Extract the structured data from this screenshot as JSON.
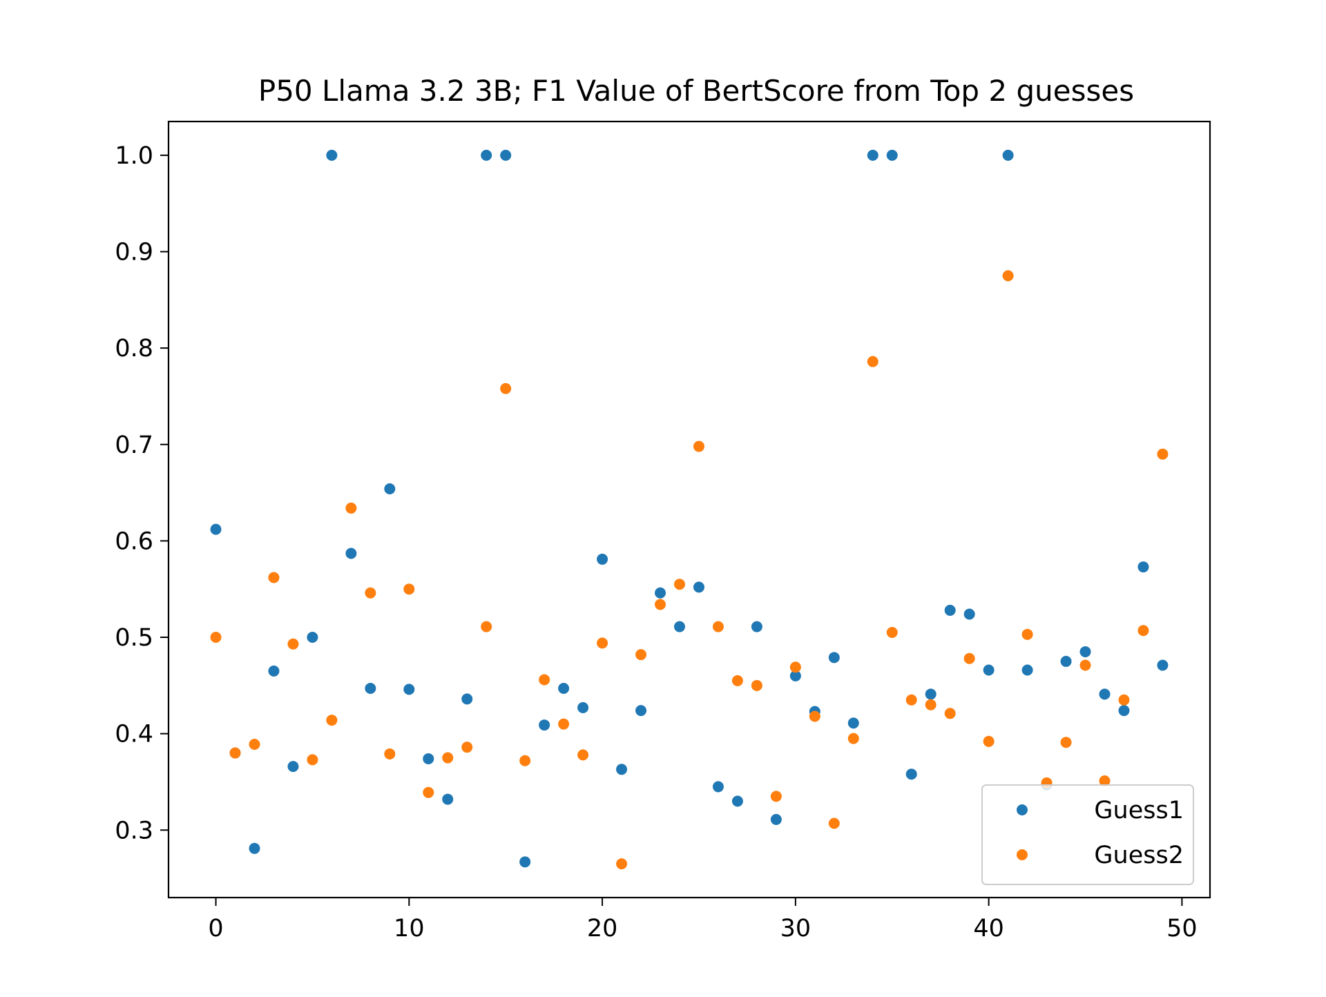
{
  "chart_data": {
    "type": "scatter",
    "title": "P50 Llama 3.2 3B; F1 Value of BertScore from Top 2 guesses",
    "xlabel": "",
    "ylabel": "",
    "xlim": [
      -2.45,
      51.45
    ],
    "ylim": [
      0.23,
      1.035
    ],
    "xticks": [
      0,
      10,
      20,
      30,
      40,
      50
    ],
    "yticks": [
      0.3,
      0.4,
      0.5,
      0.6,
      0.7,
      0.8,
      0.9,
      1.0
    ],
    "xtick_labels": [
      "0",
      "10",
      "20",
      "30",
      "40",
      "50"
    ],
    "ytick_labels": [
      "0.3",
      "0.4",
      "0.5",
      "0.6",
      "0.7",
      "0.8",
      "0.9",
      "1.0"
    ],
    "grid": false,
    "legend_position": "bottom-right",
    "x": [
      0,
      1,
      2,
      3,
      4,
      5,
      6,
      7,
      8,
      9,
      10,
      11,
      12,
      13,
      14,
      15,
      16,
      17,
      18,
      19,
      20,
      21,
      22,
      23,
      24,
      25,
      26,
      27,
      28,
      29,
      30,
      31,
      32,
      33,
      34,
      35,
      36,
      37,
      38,
      39,
      40,
      41,
      42,
      43,
      44,
      45,
      46,
      47,
      48,
      49
    ],
    "series": [
      {
        "name": "Guess1",
        "color": "#1f77b4",
        "values": [
          0.612,
          0.38,
          0.281,
          0.465,
          0.366,
          0.5,
          1.0,
          0.587,
          0.447,
          0.654,
          0.446,
          0.374,
          0.332,
          0.436,
          1.0,
          1.0,
          0.267,
          0.409,
          0.447,
          0.427,
          0.581,
          0.363,
          0.424,
          0.546,
          0.511,
          0.552,
          0.345,
          0.33,
          0.511,
          0.311,
          0.46,
          0.423,
          0.479,
          0.411,
          1.0,
          1.0,
          0.358,
          0.441,
          0.528,
          0.524,
          0.466,
          1.0,
          0.466,
          0.347,
          0.475,
          0.485,
          0.441,
          0.424,
          0.573,
          0.471
        ]
      },
      {
        "name": "Guess2",
        "color": "#ff7f0e",
        "values": [
          0.5,
          0.38,
          0.389,
          0.562,
          0.493,
          0.373,
          0.414,
          0.634,
          0.546,
          0.379,
          0.55,
          0.339,
          0.375,
          0.386,
          0.511,
          0.758,
          0.372,
          0.456,
          0.41,
          0.378,
          0.494,
          0.265,
          0.482,
          0.534,
          0.555,
          0.698,
          0.511,
          0.455,
          0.45,
          0.335,
          0.469,
          0.418,
          0.307,
          0.395,
          0.786,
          0.505,
          0.435,
          0.43,
          0.421,
          0.478,
          0.392,
          0.875,
          0.503,
          0.349,
          0.391,
          0.471,
          0.351,
          0.435,
          0.507,
          0.69
        ]
      }
    ]
  }
}
